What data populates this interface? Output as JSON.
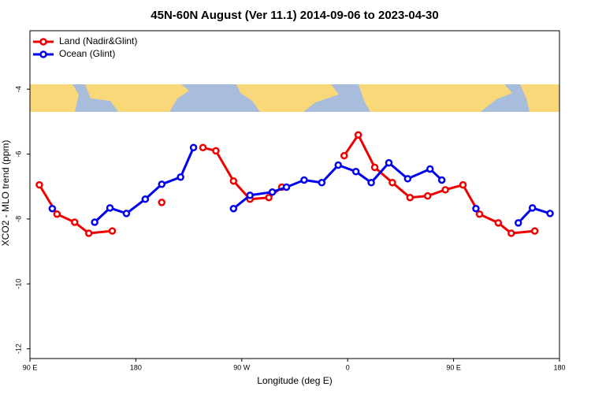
{
  "chart_data": {
    "type": "line",
    "title": "45N-60N August (Ver 11.1)   2014-09-06 to 2023-04-30",
    "x_label": "Longitude (deg E)",
    "y_label": "XCO2 - MLO trend (ppm)",
    "xlim": [
      90,
      540
    ],
    "ylim": [
      -12.3,
      -2.2
    ],
    "xticks": [
      {
        "value": 90,
        "label": "90 E"
      },
      180,
      {
        "value": 270,
        "label": "90 W"
      },
      {
        "value": 360,
        "label": "0"
      },
      {
        "value": 450,
        "label": "90 E"
      },
      {
        "value": 540,
        "label": "180"
      }
    ],
    "yticks": [
      -4,
      -6,
      -8,
      -10,
      -12
    ],
    "legend": "top-left",
    "series": [
      {
        "name": "Land (Nadir&Glint)",
        "color": "#ee0000",
        "x": [
          98,
          113,
          128,
          140,
          160,
          null,
          202,
          null,
          237,
          248,
          263,
          277,
          293,
          304,
          null,
          357,
          369,
          383,
          398,
          413,
          428,
          443,
          458,
          472,
          488,
          499,
          519
        ],
        "values": [
          -6.95,
          -7.85,
          -8.1,
          -8.44,
          -8.37,
          null,
          -7.49,
          null,
          -5.8,
          -5.9,
          -6.83,
          -7.39,
          -7.34,
          -7.02,
          null,
          -6.05,
          -5.41,
          -6.41,
          -6.88,
          -7.34,
          -7.29,
          -7.1,
          -6.95,
          -7.85,
          -8.12,
          -8.44,
          -8.37
        ]
      },
      {
        "name": "Ocean (Glint)",
        "color": "#0000ee",
        "x": [
          109,
          null,
          145,
          158,
          172,
          188,
          202,
          218,
          229,
          null,
          263,
          277,
          296,
          308,
          323,
          338,
          352,
          367,
          380,
          395,
          411,
          430,
          440,
          null,
          469,
          null,
          505,
          517,
          532
        ],
        "values": [
          -7.68,
          null,
          -8.1,
          -7.66,
          -7.83,
          -7.39,
          -6.93,
          -6.71,
          -5.8,
          null,
          -7.68,
          -7.27,
          -7.17,
          -7.02,
          -6.8,
          -6.88,
          -6.34,
          -6.54,
          -6.88,
          -6.27,
          -6.76,
          -6.46,
          -6.8,
          null,
          -7.68,
          null,
          -8.12,
          -7.66,
          -7.83
        ]
      }
    ]
  }
}
